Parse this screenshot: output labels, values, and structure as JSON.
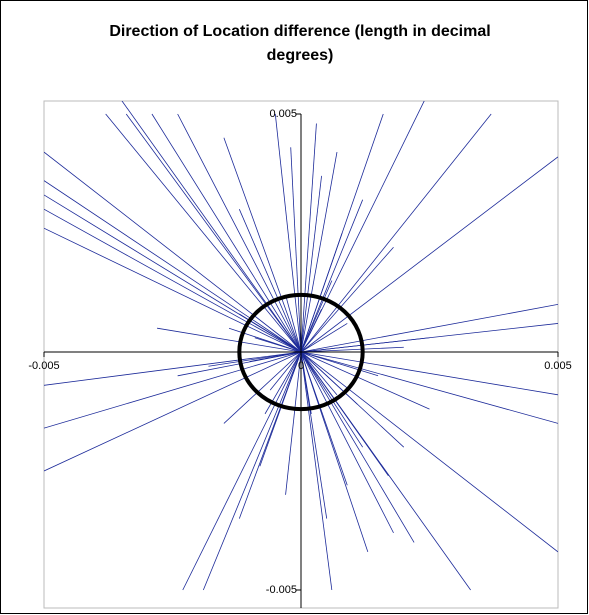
{
  "chart_data": {
    "type": "radial-segments",
    "title": "Direction of Location difference (length in decimal degrees)",
    "series": [
      {
        "color": "#1c2a99",
        "x": [
          -0.005,
          -0.005,
          -0.005,
          -0.005,
          -0.005,
          -0.0038,
          -0.0034,
          -0.0029,
          -0.0024,
          -0.0035,
          -0.0015,
          -0.0012,
          -0.0005,
          -0.0002,
          0,
          0.0003,
          0.0004,
          0.0007,
          0.0008,
          0.0016,
          0.0025,
          0.0037,
          0.005,
          0.0018,
          0.0012,
          0.005,
          0.005,
          0.0025,
          -0.0014,
          -0.0028,
          -0.0012,
          -0.005,
          -0.005,
          -0.0024,
          -0.0015,
          -0.0023,
          -0.0019,
          -0.0012,
          -0.0008,
          -0.0003,
          0,
          0.0005,
          0.0006,
          0.0013,
          0.0018,
          0.0022,
          0.0017,
          0.0012,
          0.0033,
          0.005,
          0.005,
          0.005,
          0.0025,
          0.0015,
          0.002,
          0.0009,
          0.0007,
          -0.0006,
          -0.0009,
          0.0004,
          -0.0003,
          0.0006,
          -0.0007,
          0.0011,
          -0.001,
          0.0002,
          -0.005,
          -0.0018,
          0.002,
          0.0009
        ],
        "y": [
          0.0042,
          0.0036,
          0.0033,
          0.003,
          0.0026,
          0.005,
          0.005,
          0.005,
          0.005,
          0.0053,
          0.0045,
          0.003,
          0.005,
          0.0043,
          0.005,
          0.0048,
          0.0037,
          0.0042,
          0.0025,
          0.005,
          0.0055,
          0.005,
          0.0041,
          0.0022,
          0.0032,
          0.001,
          0.0006,
          0.0003,
          0.0005,
          0.0005,
          0.0008,
          -0.0016,
          -0.0025,
          -0.0005,
          -0.0015,
          -0.005,
          -0.005,
          -0.0035,
          -0.0024,
          -0.003,
          -0.0045,
          -0.0035,
          -0.005,
          -0.0042,
          -0.0038,
          -0.004,
          -0.0026,
          -0.002,
          -0.005,
          -0.0042,
          -0.0015,
          -0.0009,
          -0.0012,
          -0.0005,
          0.0001,
          0.0006,
          -0.0009,
          -0.0008,
          0.0003,
          0.0009,
          0.0012,
          0.0015,
          -0.0013,
          -0.0011,
          -0.0002,
          -0.0013,
          -0.0007,
          -0.0003,
          -0.002,
          -0.0028
        ]
      }
    ],
    "circle": {
      "radius": 0.0012,
      "color": "#000000"
    },
    "xlim": [
      -0.005,
      0.005
    ],
    "ylim": [
      -0.005,
      0.005
    ],
    "xticks": [
      -0.005,
      0,
      0.005
    ],
    "yticks": [
      -0.005,
      0.005
    ]
  }
}
